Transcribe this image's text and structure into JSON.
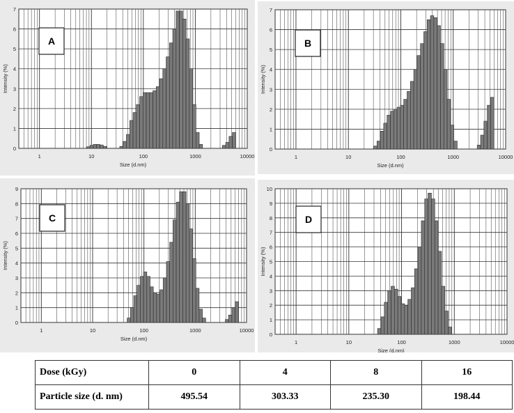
{
  "colors": {
    "bar": "#7a7a7a",
    "bar_edge": "#2a2a2a",
    "grid": "#333333",
    "panel_bg": "#eaeaea"
  },
  "chart_data": [
    {
      "type": "bar",
      "label": "A",
      "xlabel": "Size (d.nm)",
      "ylabel": "Intensity (%)",
      "xscale": "log",
      "xlim": [
        0.4,
        10000
      ],
      "xticks": [
        "1",
        "10",
        "100",
        "1000",
        "10000"
      ],
      "ylim": [
        0,
        7
      ],
      "yticks": [
        "0",
        "1",
        "2",
        "3",
        "4",
        "5",
        "6",
        "7"
      ],
      "grid": true,
      "bins": [
        {
          "x": 8.7,
          "y": 0.08
        },
        {
          "x": 10.1,
          "y": 0.15
        },
        {
          "x": 11.7,
          "y": 0.2
        },
        {
          "x": 13.5,
          "y": 0.2
        },
        {
          "x": 15.7,
          "y": 0.17
        },
        {
          "x": 18.2,
          "y": 0.1
        },
        {
          "x": 37.8,
          "y": 0.1
        },
        {
          "x": 43.8,
          "y": 0.35
        },
        {
          "x": 50.7,
          "y": 0.7
        },
        {
          "x": 58.8,
          "y": 1.4
        },
        {
          "x": 68.1,
          "y": 1.8
        },
        {
          "x": 78.8,
          "y": 2.2
        },
        {
          "x": 91.3,
          "y": 2.6
        },
        {
          "x": 105.7,
          "y": 2.8
        },
        {
          "x": 122.4,
          "y": 2.8
        },
        {
          "x": 141.8,
          "y": 2.8
        },
        {
          "x": 164.2,
          "y": 2.9
        },
        {
          "x": 190.1,
          "y": 3.1
        },
        {
          "x": 220.2,
          "y": 3.5
        },
        {
          "x": 255.0,
          "y": 4.0
        },
        {
          "x": 295.3,
          "y": 4.6
        },
        {
          "x": 342.0,
          "y": 5.3
        },
        {
          "x": 396.1,
          "y": 6.0
        },
        {
          "x": 458.7,
          "y": 6.9
        },
        {
          "x": 531.2,
          "y": 6.9
        },
        {
          "x": 615.1,
          "y": 6.5
        },
        {
          "x": 712.4,
          "y": 5.5
        },
        {
          "x": 825.0,
          "y": 4.0
        },
        {
          "x": 955.4,
          "y": 2.2
        },
        {
          "x": 1106.0,
          "y": 0.8
        },
        {
          "x": 1281.0,
          "y": 0.2
        },
        {
          "x": 3580.0,
          "y": 0.15
        },
        {
          "x": 4145.0,
          "y": 0.3
        },
        {
          "x": 4801.0,
          "y": 0.6
        },
        {
          "x": 5560.0,
          "y": 0.8
        }
      ]
    },
    {
      "type": "bar",
      "label": "B",
      "xlabel": "Size (d.nm)",
      "ylabel": "Intensity (%)",
      "xscale": "log",
      "xlim": [
        0.4,
        10000
      ],
      "xticks": [
        "1",
        "10",
        "100",
        "1000",
        "10000"
      ],
      "ylim": [
        0,
        7
      ],
      "yticks": [
        "0",
        "1",
        "2",
        "3",
        "4",
        "5",
        "6",
        "7"
      ],
      "grid": true,
      "bins": [
        {
          "x": 32.7,
          "y": 0.15
        },
        {
          "x": 37.8,
          "y": 0.4
        },
        {
          "x": 43.8,
          "y": 0.9
        },
        {
          "x": 50.7,
          "y": 1.3
        },
        {
          "x": 58.8,
          "y": 1.7
        },
        {
          "x": 68.1,
          "y": 1.9
        },
        {
          "x": 78.8,
          "y": 2.0
        },
        {
          "x": 91.3,
          "y": 2.1
        },
        {
          "x": 105.7,
          "y": 2.2
        },
        {
          "x": 122.4,
          "y": 2.5
        },
        {
          "x": 141.8,
          "y": 2.9
        },
        {
          "x": 164.2,
          "y": 3.4
        },
        {
          "x": 190.1,
          "y": 4.0
        },
        {
          "x": 220.2,
          "y": 4.7
        },
        {
          "x": 255.0,
          "y": 5.3
        },
        {
          "x": 295.3,
          "y": 5.9
        },
        {
          "x": 342.0,
          "y": 6.5
        },
        {
          "x": 396.1,
          "y": 6.7
        },
        {
          "x": 458.7,
          "y": 6.6
        },
        {
          "x": 531.2,
          "y": 6.2
        },
        {
          "x": 615.1,
          "y": 5.3
        },
        {
          "x": 712.4,
          "y": 4.0
        },
        {
          "x": 825.0,
          "y": 2.5
        },
        {
          "x": 955.4,
          "y": 1.2
        },
        {
          "x": 1106.0,
          "y": 0.4
        },
        {
          "x": 3090.0,
          "y": 0.2
        },
        {
          "x": 3580.0,
          "y": 0.7
        },
        {
          "x": 4145.0,
          "y": 1.4
        },
        {
          "x": 4801.0,
          "y": 2.2
        },
        {
          "x": 5560.0,
          "y": 2.6
        }
      ]
    },
    {
      "type": "bar",
      "label": "C",
      "xlabel": "Size (d.nm)",
      "ylabel": "Intensity (%)",
      "xscale": "log",
      "xlim": [
        0.4,
        10000
      ],
      "xticks": [
        "1",
        "10",
        "100",
        "1000",
        "10000"
      ],
      "ylim": [
        0,
        9
      ],
      "yticks": [
        "0",
        "1",
        "2",
        "3",
        "4",
        "5",
        "6",
        "7",
        "8",
        "9"
      ],
      "grid": true,
      "bins": [
        {
          "x": 50.7,
          "y": 0.3
        },
        {
          "x": 58.8,
          "y": 1.0
        },
        {
          "x": 68.1,
          "y": 1.8
        },
        {
          "x": 78.8,
          "y": 2.5
        },
        {
          "x": 91.3,
          "y": 3.1
        },
        {
          "x": 105.7,
          "y": 3.4
        },
        {
          "x": 122.4,
          "y": 3.1
        },
        {
          "x": 141.8,
          "y": 2.4
        },
        {
          "x": 164.2,
          "y": 2.0
        },
        {
          "x": 190.1,
          "y": 1.9
        },
        {
          "x": 220.2,
          "y": 2.2
        },
        {
          "x": 255.0,
          "y": 3.0
        },
        {
          "x": 295.3,
          "y": 4.1
        },
        {
          "x": 342.0,
          "y": 5.4
        },
        {
          "x": 396.1,
          "y": 6.9
        },
        {
          "x": 458.7,
          "y": 8.1
        },
        {
          "x": 531.2,
          "y": 8.8
        },
        {
          "x": 615.1,
          "y": 8.8
        },
        {
          "x": 712.4,
          "y": 8.0
        },
        {
          "x": 825.0,
          "y": 6.3
        },
        {
          "x": 955.4,
          "y": 4.3
        },
        {
          "x": 1106.0,
          "y": 2.3
        },
        {
          "x": 1281.0,
          "y": 0.9
        },
        {
          "x": 1484.0,
          "y": 0.3
        },
        {
          "x": 4145.0,
          "y": 0.2
        },
        {
          "x": 4801.0,
          "y": 0.5
        },
        {
          "x": 5560.0,
          "y": 1.0
        },
        {
          "x": 6439.0,
          "y": 1.4
        }
      ]
    },
    {
      "type": "bar",
      "label": "D",
      "xlabel": "Size (d.nm)",
      "ylabel": "Intensity (%)",
      "xscale": "log",
      "xlim": [
        0.4,
        10000
      ],
      "xticks": [
        "1",
        "10",
        "100",
        "1000",
        "10000"
      ],
      "ylim": [
        0,
        10
      ],
      "yticks": [
        "0",
        "1",
        "2",
        "3",
        "4",
        "5",
        "6",
        "7",
        "8",
        "9",
        "10"
      ],
      "grid": true,
      "bins": [
        {
          "x": 37.8,
          "y": 0.4
        },
        {
          "x": 43.8,
          "y": 1.2
        },
        {
          "x": 50.7,
          "y": 2.2
        },
        {
          "x": 58.8,
          "y": 3.0
        },
        {
          "x": 68.1,
          "y": 3.3
        },
        {
          "x": 78.8,
          "y": 3.1
        },
        {
          "x": 91.3,
          "y": 2.6
        },
        {
          "x": 105.7,
          "y": 2.1
        },
        {
          "x": 122.4,
          "y": 2.0
        },
        {
          "x": 141.8,
          "y": 2.4
        },
        {
          "x": 164.2,
          "y": 3.2
        },
        {
          "x": 190.1,
          "y": 4.5
        },
        {
          "x": 220.2,
          "y": 6.0
        },
        {
          "x": 255.0,
          "y": 7.8
        },
        {
          "x": 295.3,
          "y": 9.3
        },
        {
          "x": 342.0,
          "y": 9.7
        },
        {
          "x": 396.1,
          "y": 9.3
        },
        {
          "x": 458.7,
          "y": 7.8
        },
        {
          "x": 531.2,
          "y": 5.7
        },
        {
          "x": 615.1,
          "y": 3.3
        },
        {
          "x": 712.4,
          "y": 1.6
        },
        {
          "x": 825.0,
          "y": 0.5
        }
      ]
    }
  ],
  "table": {
    "headers": [
      "Dose (kGy)",
      "0",
      "4",
      "8",
      "16"
    ],
    "row": [
      "Particle size (d. nm)",
      "495.54",
      "303.33",
      "235.30",
      "198.44"
    ]
  }
}
